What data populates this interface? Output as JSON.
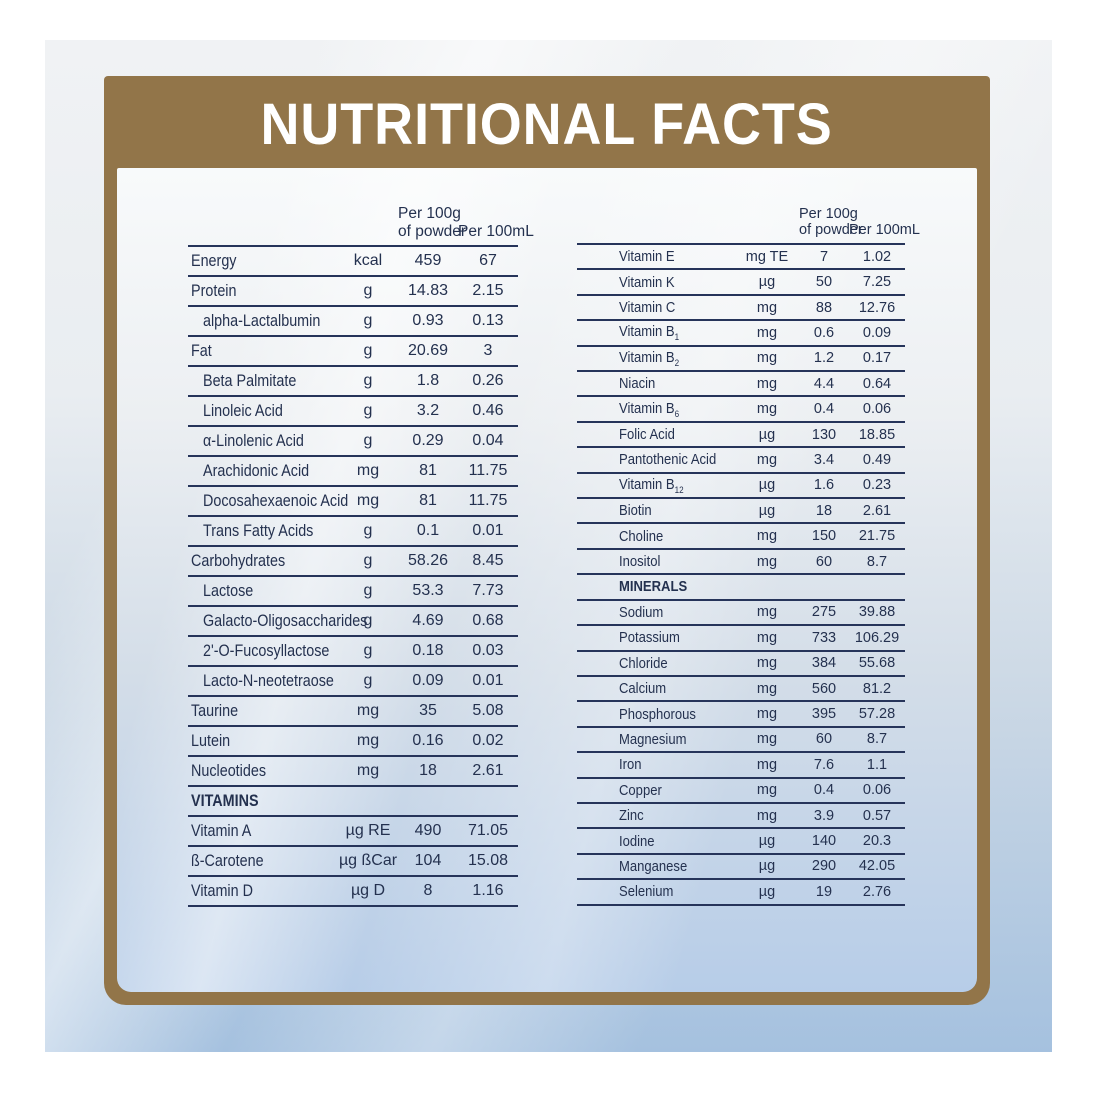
{
  "title": "NUTRITIONAL FACTS",
  "colors": {
    "brand_brown": "#927549",
    "text_navy": "#24314f",
    "rule_navy": "#26345a",
    "backdrop_bottom_blue": "#a5c1df",
    "title_white": "#ffffff"
  },
  "column_headers": {
    "per_100g_line1": "Per 100g",
    "per_100g_line2": "of powder",
    "per_100ml": "Per 100mL"
  },
  "left_table": {
    "rows": [
      {
        "label": "Energy",
        "unit": "kcal",
        "per100g": "459",
        "per100ml": "67"
      },
      {
        "label": "Protein",
        "unit": "g",
        "per100g": "14.83",
        "per100ml": "2.15"
      },
      {
        "label": "alpha-Lactalbumin",
        "indent": true,
        "unit": "g",
        "per100g": "0.93",
        "per100ml": "0.13"
      },
      {
        "label": "Fat",
        "unit": "g",
        "per100g": "20.69",
        "per100ml": "3"
      },
      {
        "label": "Beta Palmitate",
        "indent": true,
        "unit": "g",
        "per100g": "1.8",
        "per100ml": "0.26"
      },
      {
        "label": "Linoleic Acid",
        "indent": true,
        "unit": "g",
        "per100g": "3.2",
        "per100ml": "0.46"
      },
      {
        "label": "α-Linolenic Acid",
        "indent": true,
        "unit": "g",
        "per100g": "0.29",
        "per100ml": "0.04"
      },
      {
        "label": "Arachidonic Acid",
        "indent": true,
        "unit": "mg",
        "per100g": "81",
        "per100ml": "11.75"
      },
      {
        "label": "Docosahexaenoic Acid",
        "indent": true,
        "unit": "mg",
        "per100g": "81",
        "per100ml": "11.75"
      },
      {
        "label": "Trans Fatty Acids",
        "indent": true,
        "unit": "g",
        "per100g": "0.1",
        "per100ml": "0.01"
      },
      {
        "label": "Carbohydrates",
        "unit": "g",
        "per100g": "58.26",
        "per100ml": "8.45"
      },
      {
        "label": "Lactose",
        "indent": true,
        "unit": "g",
        "per100g": "53.3",
        "per100ml": "7.73"
      },
      {
        "label": "Galacto-Oligosaccharides",
        "indent": true,
        "unit": "g",
        "per100g": "4.69",
        "per100ml": "0.68"
      },
      {
        "label": "2'-O-Fucosyllactose",
        "indent": true,
        "unit": "g",
        "per100g": "0.18",
        "per100ml": "0.03"
      },
      {
        "label": "Lacto-N-neotetraose",
        "indent": true,
        "unit": "g",
        "per100g": "0.09",
        "per100ml": "0.01"
      },
      {
        "label": "Taurine",
        "unit": "mg",
        "per100g": "35",
        "per100ml": "5.08"
      },
      {
        "label": "Lutein",
        "unit": "mg",
        "per100g": "0.16",
        "per100ml": "0.02"
      },
      {
        "label": "Nucleotides",
        "unit": "mg",
        "per100g": "18",
        "per100ml": "2.61"
      },
      {
        "label": "VITAMINS",
        "section": true
      },
      {
        "label": "Vitamin A",
        "unit": "µg RE",
        "per100g": "490",
        "per100ml": "71.05"
      },
      {
        "label": "ß-Carotene",
        "unit": "µg ßCar",
        "per100g": "104",
        "per100ml": "15.08"
      },
      {
        "label": "Vitamin D",
        "unit": "µg D",
        "per100g": "8",
        "per100ml": "1.16"
      }
    ]
  },
  "right_table": {
    "rows": [
      {
        "label": "Vitamin E",
        "unit": "mg TE",
        "per100g": "7",
        "per100ml": "1.02"
      },
      {
        "label": "Vitamin K",
        "unit": "µg",
        "per100g": "50",
        "per100ml": "7.25"
      },
      {
        "label": "Vitamin C",
        "unit": "mg",
        "per100g": "88",
        "per100ml": "12.76"
      },
      {
        "label": "Vitamin B",
        "sub": "1",
        "unit": "mg",
        "per100g": "0.6",
        "per100ml": "0.09"
      },
      {
        "label": "Vitamin B",
        "sub": "2",
        "unit": "mg",
        "per100g": "1.2",
        "per100ml": "0.17"
      },
      {
        "label": "Niacin",
        "unit": "mg",
        "per100g": "4.4",
        "per100ml": "0.64"
      },
      {
        "label": "Vitamin B",
        "sub": "6",
        "unit": "mg",
        "per100g": "0.4",
        "per100ml": "0.06"
      },
      {
        "label": "Folic Acid",
        "unit": "µg",
        "per100g": "130",
        "per100ml": "18.85"
      },
      {
        "label": "Pantothenic Acid",
        "unit": "mg",
        "per100g": "3.4",
        "per100ml": "0.49"
      },
      {
        "label": "Vitamin B",
        "sub": "12",
        "unit": "µg",
        "per100g": "1.6",
        "per100ml": "0.23"
      },
      {
        "label": "Biotin",
        "unit": "µg",
        "per100g": "18",
        "per100ml": "2.61"
      },
      {
        "label": "Choline",
        "unit": "mg",
        "per100g": "150",
        "per100ml": "21.75"
      },
      {
        "label": "Inositol",
        "unit": "mg",
        "per100g": "60",
        "per100ml": "8.7"
      },
      {
        "label": "MINERALS",
        "section": true
      },
      {
        "label": "Sodium",
        "unit": "mg",
        "per100g": "275",
        "per100ml": "39.88"
      },
      {
        "label": "Potassium",
        "unit": "mg",
        "per100g": "733",
        "per100ml": "106.29"
      },
      {
        "label": "Chloride",
        "unit": "mg",
        "per100g": "384",
        "per100ml": "55.68"
      },
      {
        "label": "Calcium",
        "unit": "mg",
        "per100g": "560",
        "per100ml": "81.2"
      },
      {
        "label": "Phosphorous",
        "unit": "mg",
        "per100g": "395",
        "per100ml": "57.28"
      },
      {
        "label": "Magnesium",
        "unit": "mg",
        "per100g": "60",
        "per100ml": "8.7"
      },
      {
        "label": "Iron",
        "unit": "mg",
        "per100g": "7.6",
        "per100ml": "1.1"
      },
      {
        "label": "Copper",
        "unit": "mg",
        "per100g": "0.4",
        "per100ml": "0.06"
      },
      {
        "label": "Zinc",
        "unit": "mg",
        "per100g": "3.9",
        "per100ml": "0.57"
      },
      {
        "label": "Iodine",
        "unit": "µg",
        "per100g": "140",
        "per100ml": "20.3"
      },
      {
        "label": "Manganese",
        "unit": "µg",
        "per100g": "290",
        "per100ml": "42.05"
      },
      {
        "label": "Selenium",
        "unit": "µg",
        "per100g": "19",
        "per100ml": "2.76"
      }
    ]
  }
}
